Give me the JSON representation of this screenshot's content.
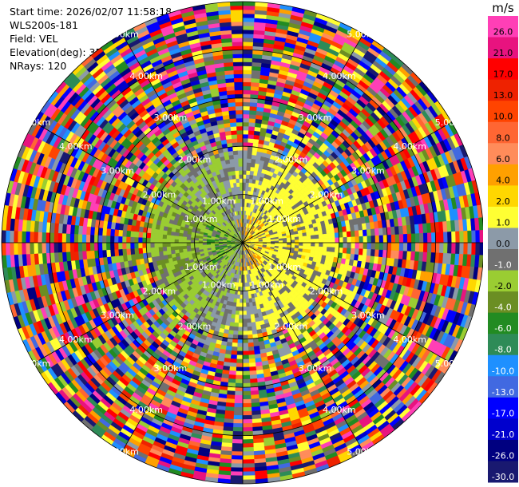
{
  "header": {
    "start_time": "Start time: 2026/02/07 11:58:18",
    "instrument": "WLS200s-181",
    "field": "Field: VEL",
    "elevation": "Elevation(deg): 35.00",
    "nrays": "NRays: 120"
  },
  "chart_data": {
    "type": "heatmap",
    "subtype": "polar PPI",
    "field": "VEL",
    "nrays": 120,
    "range_rings_km": [
      1.0,
      2.0,
      3.0,
      4.0,
      5.0
    ],
    "range_labels": {
      "1.0": "1.00km",
      "2.0": "2.00km",
      "3.0": "3.00km",
      "4.0": "4.00km",
      "5.0": "5.00km"
    },
    "colorbar": {
      "unit": "m/s",
      "ticks": [
        "26.0",
        "21.0",
        "17.0",
        "13.0",
        "10.0",
        "8.0",
        "6.0",
        "4.0",
        "2.0",
        "1.0",
        "0.0",
        "-1.0",
        "-2.0",
        "-4.0",
        "-6.0",
        "-8.0",
        "-10.0",
        "-13.0",
        "-17.0",
        "-21.0",
        "-26.0",
        "-30.0"
      ],
      "colors": [
        "#ff3fb6",
        "#e8137f",
        "#ff0000",
        "#ee2200",
        "#ff4400",
        "#ff6633",
        "#ff8c5a",
        "#ffa000",
        "#ffd700",
        "#ffff33",
        "#8c9aa8",
        "#707070",
        "#9acd32",
        "#6b8e23",
        "#228b22",
        "#2e8b57",
        "#1e90ff",
        "#4169e1",
        "#0000ff",
        "#0000cd",
        "#000080",
        "#191970"
      ]
    }
  }
}
